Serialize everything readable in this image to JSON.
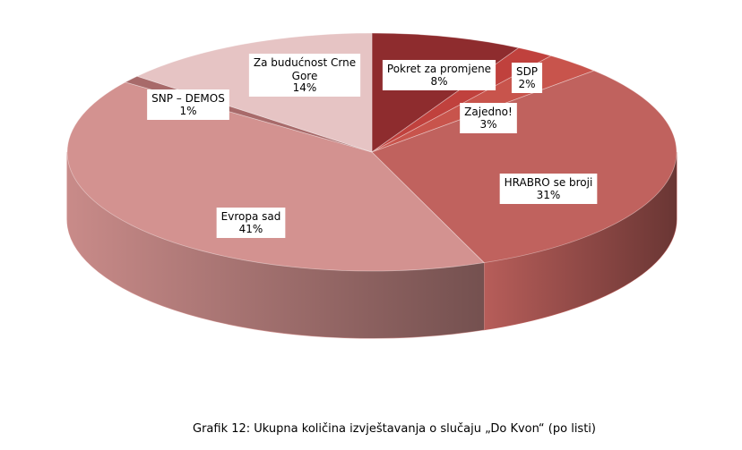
{
  "chart_data": {
    "type": "pie",
    "categories": [
      "Pokret za promjene",
      "SDP",
      "Zajedno!",
      "HRABRO se broji",
      "Evropa sad",
      "SNP – DEMOS",
      "Za budućnost Crne Gore"
    ],
    "values": [
      8,
      2,
      3,
      31,
      41,
      1,
      14
    ],
    "value_labels": [
      "8%",
      "2%",
      "3%",
      "31%",
      "41%",
      "1%",
      "14%"
    ],
    "colors": [
      "#8e2c2e",
      "#c0413d",
      "#c8544c",
      "#c0625e",
      "#d39290",
      "#a86a6a",
      "#e6c4c4"
    ],
    "caption": "Grafik 12: Ukupna količina izvještavanja o slučaju „Do Kvon“ (po listi)"
  }
}
